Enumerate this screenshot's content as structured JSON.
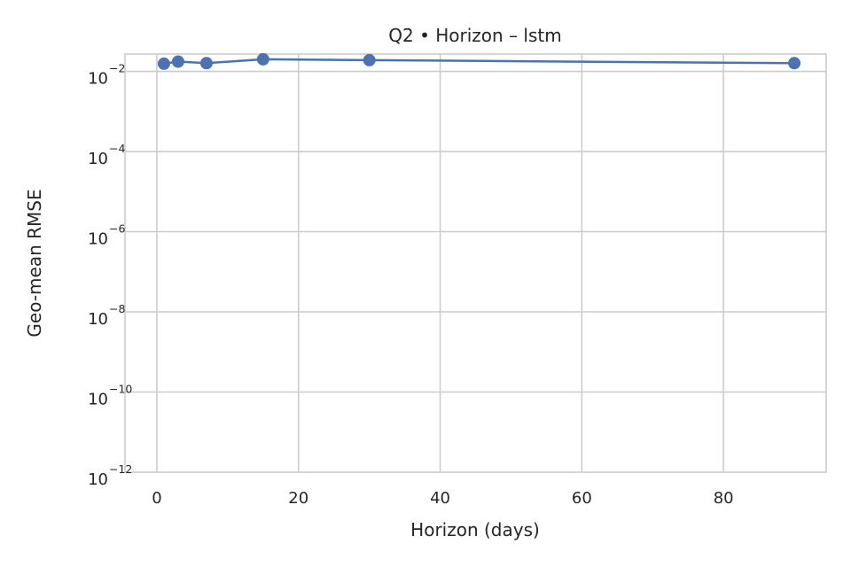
{
  "chart_data": {
    "type": "line",
    "title": "Q2 • Horizon – lstm",
    "xlabel": "Horizon (days)",
    "ylabel": "Geo-mean RMSE",
    "x_scale": "linear",
    "y_scale": "log",
    "xlim": [
      -4.5,
      94.5
    ],
    "ylim": [
      1e-12,
      0.027
    ],
    "x_ticks": [
      0,
      20,
      40,
      60,
      80
    ],
    "x_tick_labels": [
      "0",
      "20",
      "40",
      "60",
      "80"
    ],
    "y_ticks": [
      -2,
      -4,
      -6,
      -8,
      -10,
      -12
    ],
    "y_tick_base": "10",
    "y_tick_exponents": [
      "−2",
      "−4",
      "−6",
      "−8",
      "−10",
      "−12"
    ],
    "grid": true,
    "series": [
      {
        "color": "#4c72b0",
        "x": [
          1,
          3,
          7,
          15,
          30,
          90
        ],
        "y": [
          0.0155,
          0.0175,
          0.016,
          0.02,
          0.019,
          0.016
        ]
      }
    ]
  }
}
